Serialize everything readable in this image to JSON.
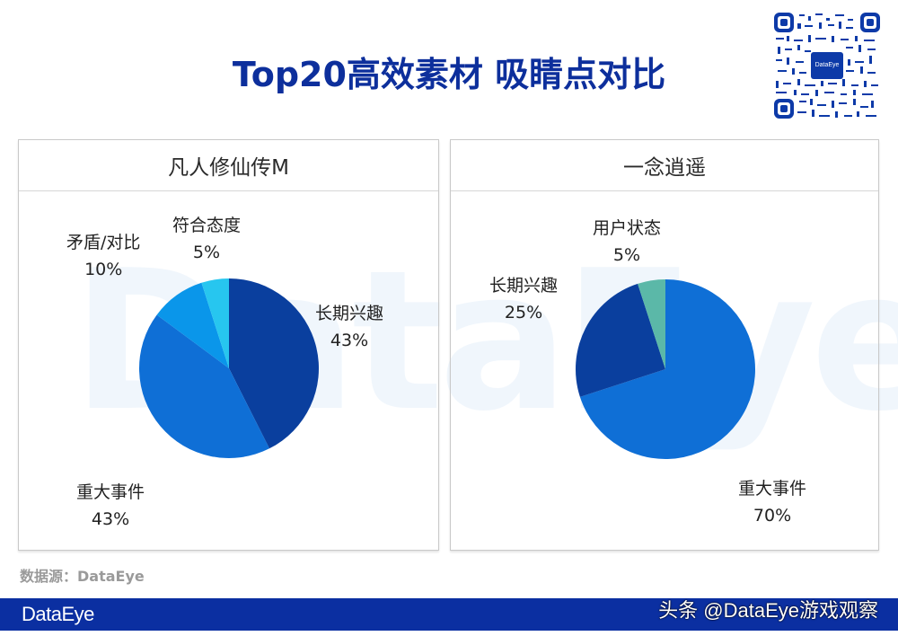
{
  "header": {
    "title": "Top20高效素材 吸睛点对比"
  },
  "qr_code": {
    "center_label": "DataEye"
  },
  "watermark": "DataEye",
  "panels": [
    {
      "title": "凡人修仙传M",
      "labels": [
        {
          "name": "长期兴趣",
          "pct": "43%"
        },
        {
          "name": "重大事件",
          "pct": "43%"
        },
        {
          "name": "矛盾/对比",
          "pct": "10%"
        },
        {
          "name": "符合态度",
          "pct": "5%"
        }
      ]
    },
    {
      "title": "一念逍遥",
      "labels": [
        {
          "name": "重大事件",
          "pct": "70%"
        },
        {
          "name": "长期兴趣",
          "pct": "25%"
        },
        {
          "name": "用户状态",
          "pct": "5%"
        }
      ]
    }
  ],
  "chart_data": [
    {
      "type": "pie",
      "title": "凡人修仙传M",
      "categories": [
        "长期兴趣",
        "重大事件",
        "矛盾/对比",
        "符合态度"
      ],
      "values": [
        43,
        43,
        10,
        5
      ],
      "colors": [
        "#0a3f9e",
        "#0f6fd6",
        "#0a96ea",
        "#27c6ef"
      ],
      "start_angle": "12 o'clock",
      "direction": "clockwise",
      "legend": "none (data labels outside)"
    },
    {
      "type": "pie",
      "title": "一念逍遥",
      "categories": [
        "重大事件",
        "长期兴趣",
        "用户状态"
      ],
      "values": [
        70,
        25,
        5
      ],
      "colors": [
        "#0f6fd6",
        "#0a3f9e",
        "#5bb8a8"
      ],
      "start_angle": "12 o'clock",
      "direction": "clockwise",
      "legend": "none (data labels outside)"
    }
  ],
  "source": "数据源：DataEye",
  "footer": {
    "logo": "DataEye",
    "credit": "头条 @DataEye游戏观察"
  },
  "colors": {
    "title": "#0d2f9c",
    "footer_bar": "#0b2fa1",
    "source_text": "#9a9a9a"
  }
}
